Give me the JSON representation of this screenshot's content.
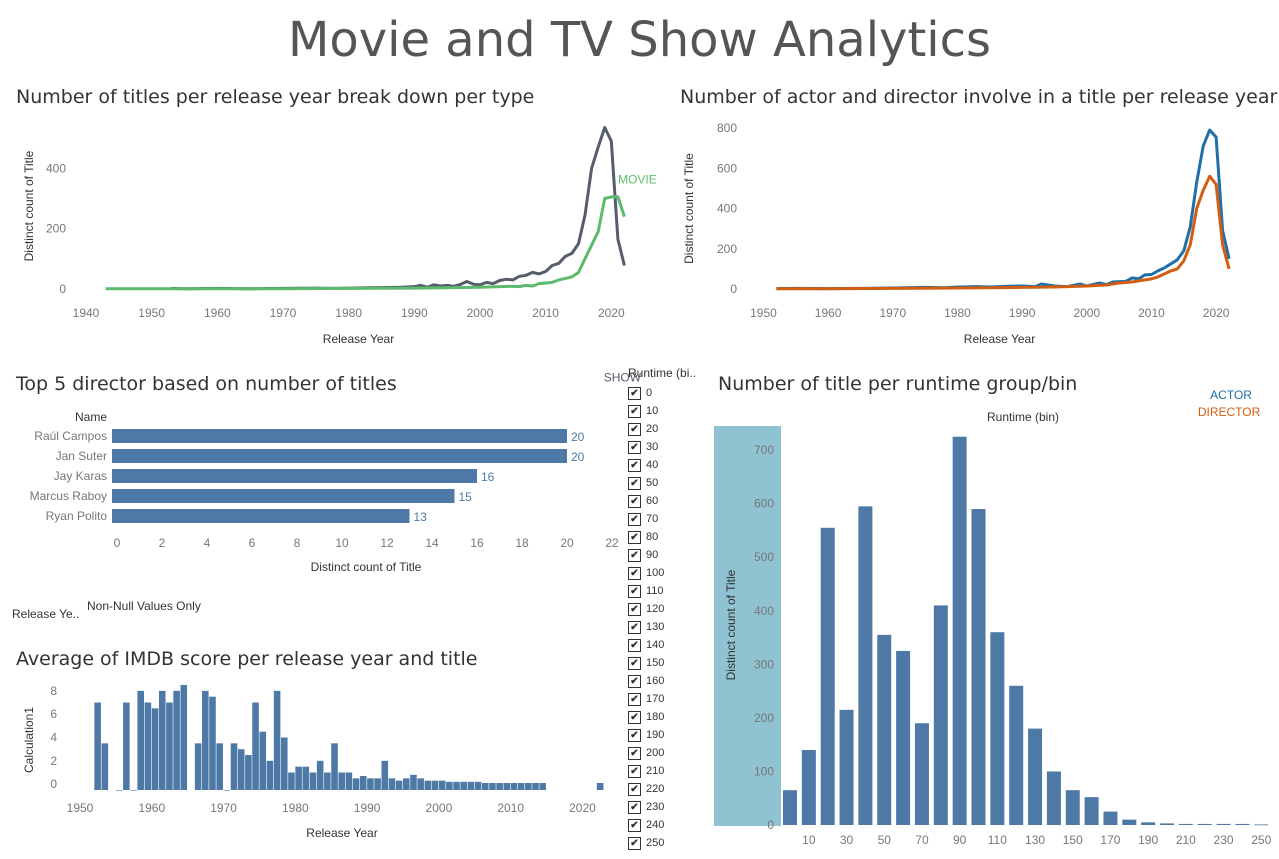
{
  "dashboard_title": "Movie and TV Show Analytics",
  "colors": {
    "show": "#555d6b",
    "movie": "#5cba6c",
    "actor": "#1f6fa8",
    "director": "#d35d10",
    "bar": "#4e79a7",
    "highlight": "#8fc3d1"
  },
  "filters": {
    "release_year_label": "Release Ye..",
    "release_year_value": "Non-Null Values Only",
    "runtime_label": "Runtime (bi..",
    "runtime_values": [
      "0",
      "10",
      "20",
      "30",
      "40",
      "50",
      "60",
      "70",
      "80",
      "90",
      "100",
      "110",
      "120",
      "130",
      "140",
      "150",
      "160",
      "170",
      "180",
      "190",
      "200",
      "210",
      "220",
      "230",
      "240",
      "250"
    ],
    "check_glyph": "✔"
  },
  "chart_data": [
    {
      "id": "titles_per_year",
      "type": "line",
      "title": "Number of titles per release year break down per type",
      "xlabel": "Release Year",
      "ylabel": "Distinct count of Title",
      "xlim": [
        1940,
        2023
      ],
      "ylim": [
        0,
        550
      ],
      "xticks": [
        1940,
        1950,
        1960,
        1970,
        1980,
        1990,
        2000,
        2010,
        2020
      ],
      "yticks": [
        0,
        200,
        400
      ],
      "series": [
        {
          "name": "SHOW",
          "color": "#555d6b",
          "points": [
            [
              1953,
              2
            ],
            [
              1955,
              1
            ],
            [
              1960,
              2
            ],
            [
              1965,
              1
            ],
            [
              1970,
              2
            ],
            [
              1975,
              3
            ],
            [
              1978,
              2
            ],
            [
              1980,
              3
            ],
            [
              1983,
              4
            ],
            [
              1986,
              5
            ],
            [
              1988,
              6
            ],
            [
              1990,
              8
            ],
            [
              1991,
              12
            ],
            [
              1992,
              6
            ],
            [
              1993,
              14
            ],
            [
              1994,
              10
            ],
            [
              1995,
              12
            ],
            [
              1996,
              9
            ],
            [
              1997,
              15
            ],
            [
              1998,
              25
            ],
            [
              1999,
              16
            ],
            [
              2000,
              14
            ],
            [
              2001,
              22
            ],
            [
              2002,
              18
            ],
            [
              2003,
              28
            ],
            [
              2004,
              32
            ],
            [
              2005,
              30
            ],
            [
              2006,
              42
            ],
            [
              2007,
              45
            ],
            [
              2008,
              55
            ],
            [
              2009,
              50
            ],
            [
              2010,
              58
            ],
            [
              2011,
              78
            ],
            [
              2012,
              85
            ],
            [
              2013,
              108
            ],
            [
              2014,
              118
            ],
            [
              2015,
              150
            ],
            [
              2016,
              245
            ],
            [
              2017,
              400
            ],
            [
              2018,
              470
            ],
            [
              2019,
              535
            ],
            [
              2020,
              490
            ],
            [
              2021,
              165
            ],
            [
              2022,
              78
            ]
          ]
        },
        {
          "name": "MOVIE",
          "color": "#5cba6c",
          "points": [
            [
              1943,
              1
            ],
            [
              1950,
              1
            ],
            [
              1953,
              1
            ],
            [
              1960,
              1
            ],
            [
              1970,
              1
            ],
            [
              1980,
              2
            ],
            [
              1990,
              3
            ],
            [
              1995,
              4
            ],
            [
              2000,
              6
            ],
            [
              2005,
              9
            ],
            [
              2006,
              8
            ],
            [
              2007,
              12
            ],
            [
              2008,
              10
            ],
            [
              2009,
              18
            ],
            [
              2010,
              20
            ],
            [
              2011,
              22
            ],
            [
              2012,
              30
            ],
            [
              2013,
              35
            ],
            [
              2014,
              40
            ],
            [
              2015,
              55
            ],
            [
              2016,
              100
            ],
            [
              2017,
              145
            ],
            [
              2018,
              190
            ],
            [
              2019,
              300
            ],
            [
              2020,
              305
            ],
            [
              2021,
              305
            ],
            [
              2022,
              240
            ]
          ]
        }
      ]
    },
    {
      "id": "actor_director_per_year",
      "type": "line",
      "title": "Number of actor and director involve in a title per release year",
      "xlabel": "Release Year",
      "ylabel": "Distinct count of Title",
      "xlim": [
        1949,
        2024
      ],
      "ylim": [
        0,
        800
      ],
      "xticks": [
        1950,
        1960,
        1970,
        1980,
        1990,
        2000,
        2010,
        2020
      ],
      "yticks": [
        0,
        200,
        400,
        600,
        800
      ],
      "series": [
        {
          "name": "ACTOR",
          "color": "#1f6fa8",
          "points": [
            [
              1952,
              2
            ],
            [
              1955,
              3
            ],
            [
              1960,
              2
            ],
            [
              1965,
              3
            ],
            [
              1970,
              5
            ],
            [
              1975,
              8
            ],
            [
              1978,
              6
            ],
            [
              1980,
              10
            ],
            [
              1983,
              12
            ],
            [
              1985,
              10
            ],
            [
              1988,
              14
            ],
            [
              1990,
              15
            ],
            [
              1992,
              12
            ],
            [
              1993,
              25
            ],
            [
              1995,
              15
            ],
            [
              1997,
              12
            ],
            [
              1999,
              25
            ],
            [
              2000,
              15
            ],
            [
              2002,
              30
            ],
            [
              2003,
              22
            ],
            [
              2004,
              35
            ],
            [
              2006,
              38
            ],
            [
              2007,
              55
            ],
            [
              2008,
              50
            ],
            [
              2009,
              70
            ],
            [
              2010,
              72
            ],
            [
              2011,
              90
            ],
            [
              2012,
              105
            ],
            [
              2013,
              125
            ],
            [
              2014,
              145
            ],
            [
              2015,
              190
            ],
            [
              2016,
              310
            ],
            [
              2017,
              530
            ],
            [
              2018,
              710
            ],
            [
              2019,
              790
            ],
            [
              2020,
              755
            ],
            [
              2021,
              290
            ],
            [
              2022,
              150
            ]
          ]
        },
        {
          "name": "DIRECTOR",
          "color": "#d35d10",
          "points": [
            [
              1952,
              1
            ],
            [
              1960,
              1
            ],
            [
              1970,
              3
            ],
            [
              1980,
              5
            ],
            [
              1990,
              8
            ],
            [
              1995,
              10
            ],
            [
              2000,
              15
            ],
            [
              2003,
              20
            ],
            [
              2005,
              30
            ],
            [
              2007,
              35
            ],
            [
              2008,
              40
            ],
            [
              2009,
              45
            ],
            [
              2010,
              50
            ],
            [
              2011,
              60
            ],
            [
              2012,
              75
            ],
            [
              2013,
              90
            ],
            [
              2014,
              100
            ],
            [
              2015,
              140
            ],
            [
              2016,
              220
            ],
            [
              2017,
              400
            ],
            [
              2018,
              490
            ],
            [
              2019,
              560
            ],
            [
              2020,
              520
            ],
            [
              2021,
              220
            ],
            [
              2022,
              100
            ]
          ]
        }
      ]
    },
    {
      "id": "top5_directors",
      "type": "bar",
      "orientation": "horizontal",
      "title": "Top 5 director based on number of titles",
      "category_header": "Name",
      "xlabel": "Distinct count of Title",
      "xlim": [
        0,
        22
      ],
      "xticks": [
        0,
        2,
        4,
        6,
        8,
        10,
        12,
        14,
        16,
        18,
        20,
        22
      ],
      "categories": [
        "Raúl Campos",
        "Jan Suter",
        "Jay Karas",
        "Marcus Raboy",
        "Ryan Polito"
      ],
      "values": [
        20,
        20,
        16,
        15,
        13
      ]
    },
    {
      "id": "imdb_score_per_year",
      "type": "bar",
      "title": "Average of IMDB score per release year and title",
      "xlabel": "Release Year",
      "ylabel": "Calculation1",
      "xlim": [
        1950,
        2023
      ],
      "ylim": [
        -0.5,
        8.5
      ],
      "xticks": [
        1950,
        1960,
        1970,
        1980,
        1990,
        2000,
        2010,
        2020
      ],
      "yticks": [
        0,
        2,
        4,
        6,
        8
      ],
      "x": [
        1952,
        1953,
        1955,
        1956,
        1957,
        1958,
        1959,
        1960,
        1961,
        1962,
        1963,
        1964,
        1966,
        1967,
        1968,
        1969,
        1970,
        1971,
        1972,
        1973,
        1974,
        1975,
        1976,
        1977,
        1978,
        1979,
        1980,
        1981,
        1982,
        1983,
        1984,
        1985,
        1986,
        1987,
        1988,
        1989,
        1990,
        1991,
        1992,
        1993,
        1994,
        1995,
        1996,
        1997,
        1998,
        1999,
        2000,
        2001,
        2002,
        2003,
        2004,
        2005,
        2006,
        2007,
        2008,
        2009,
        2010,
        2011,
        2012,
        2013,
        2014,
        2022
      ],
      "values": [
        7,
        3.5,
        -0.5,
        7,
        -0.5,
        8,
        7,
        6.5,
        8,
        7,
        8,
        8.5,
        3.5,
        8,
        7.5,
        3.5,
        -0.5,
        3.5,
        3,
        2.5,
        7,
        4.5,
        2,
        8,
        4,
        1,
        1.5,
        1.5,
        1,
        2,
        1,
        3.5,
        1,
        1,
        0.5,
        0.7,
        0.5,
        0.5,
        2,
        0.5,
        0.3,
        0.5,
        0.8,
        0.5,
        0.3,
        0.3,
        0.3,
        0.2,
        0.2,
        0.2,
        0.2,
        0.2,
        0.1,
        0.1,
        0.1,
        0.1,
        0.1,
        0.1,
        0.1,
        0.1,
        0.1,
        0.1
      ]
    },
    {
      "id": "titles_per_runtime_bin",
      "type": "bar",
      "title": "Number of title per runtime group/bin",
      "header_label": "Runtime (bin)",
      "ylabel": "Distinct count of Title",
      "ylim": [
        0,
        760
      ],
      "yticks": [
        0,
        100,
        200,
        300,
        400,
        500,
        600,
        700
      ],
      "xtick_labels": [
        "10",
        "30",
        "50",
        "70",
        "90",
        "110",
        "130",
        "150",
        "170",
        "190",
        "210",
        "230",
        "250"
      ],
      "categories": [
        "0",
        "10",
        "20",
        "30",
        "40",
        "50",
        "60",
        "70",
        "80",
        "90",
        "100",
        "110",
        "120",
        "130",
        "140",
        "150",
        "160",
        "170",
        "180",
        "190",
        "200",
        "210",
        "220",
        "230",
        "240",
        "250"
      ],
      "values": [
        65,
        140,
        555,
        215,
        595,
        355,
        325,
        190,
        410,
        725,
        590,
        360,
        260,
        180,
        100,
        65,
        52,
        25,
        10,
        5,
        3,
        2,
        2,
        2,
        2,
        1
      ]
    }
  ]
}
